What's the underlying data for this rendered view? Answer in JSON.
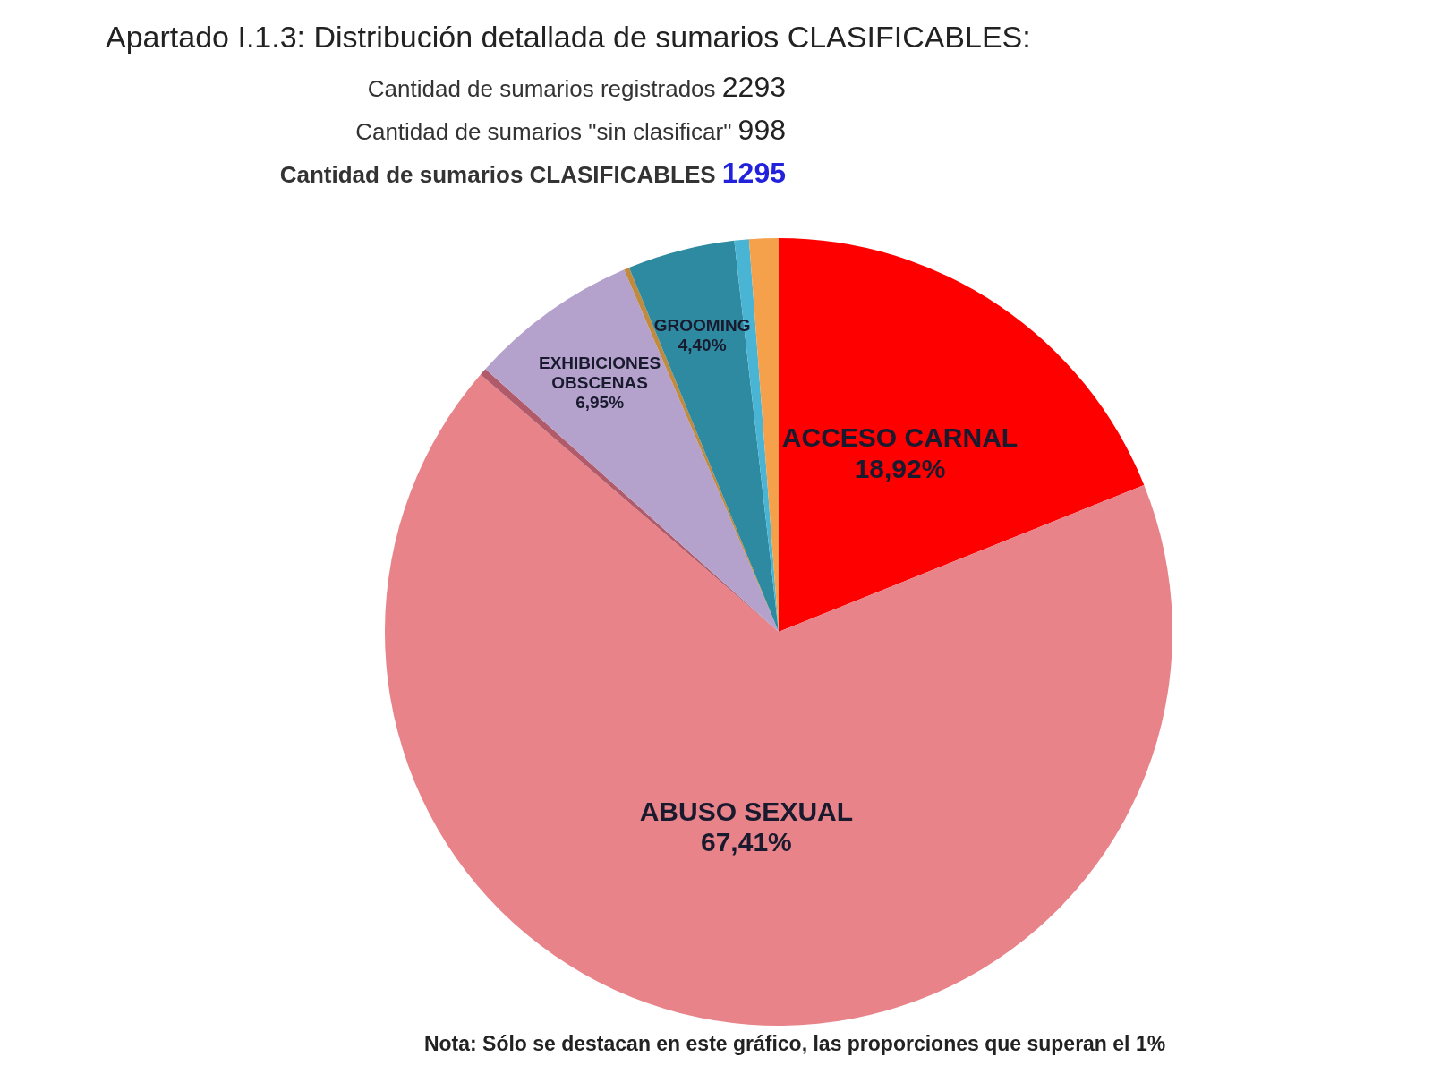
{
  "chart_data": {
    "type": "pie",
    "title": "Apartado I.1.3: Distribución detallada de sumarios  CLASIFICABLES:",
    "annotations": [
      "Cantidad de sumarios registrados 2293",
      "Cantidad de sumarios \"sin clasificar\" 998",
      "Cantidad de sumarios CLASIFICABLES 1295",
      "Nota: Sólo se destacan en este gráfico, las proporciones que superan el 1%"
    ],
    "categories": [
      "ACCESO CARNAL",
      "ABUSO SEXUAL",
      null,
      "EXHIBICIONES OBSCENAS",
      null,
      "GROOMING",
      null,
      null
    ],
    "values": [
      18.92,
      67.41,
      0.3,
      6.95,
      0.22,
      4.4,
      0.6,
      1.2
    ],
    "value_labels": [
      "18,92%",
      "67,41%",
      null,
      "6,95%",
      null,
      "4,40%",
      null,
      null
    ],
    "colors": [
      "#ff0000",
      "#e8838a",
      "#b05a6a",
      "#b4a2cc",
      "#c08a40",
      "#2e8aa0",
      "#4ab4d4",
      "#f5a04a"
    ]
  }
}
